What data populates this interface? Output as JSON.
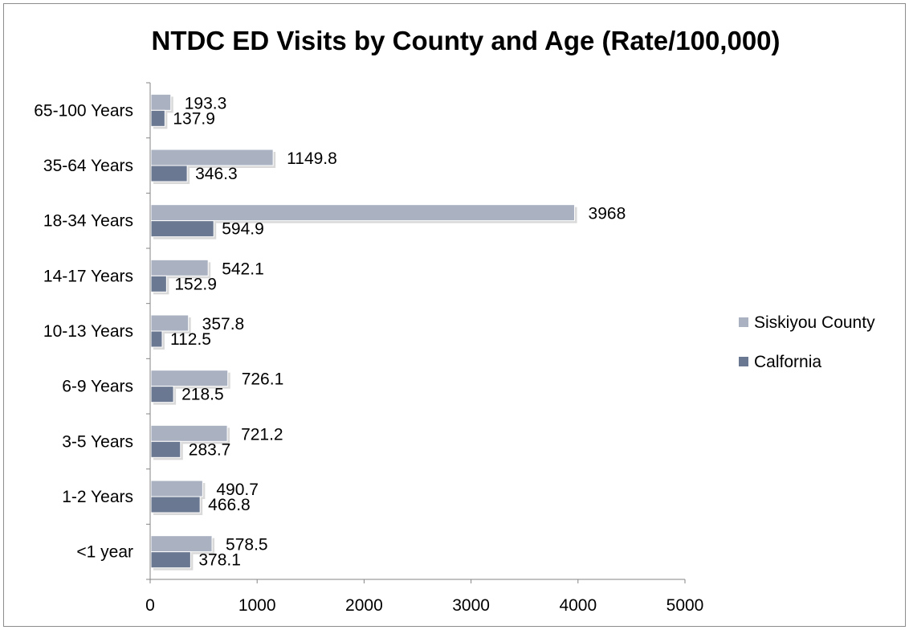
{
  "chart_data": {
    "type": "bar",
    "orientation": "horizontal",
    "title": "NTDC ED Visits by County and Age (Rate/100,000)",
    "categories": [
      "65-100 Years",
      "35-64 Years",
      "18-34 Years",
      "14-17 Years",
      "10-13 Years",
      "6-9 Years",
      "3-5 Years",
      "1-2 Years",
      "<1 year"
    ],
    "series": [
      {
        "name": "Siskiyou County",
        "color": "#aab2c1",
        "values": [
          193.3,
          1149.8,
          3968,
          542.1,
          357.8,
          726.1,
          721.2,
          490.7,
          578.5
        ],
        "labels": [
          "193.3",
          "1149.8",
          "3968",
          "542.1",
          "357.8",
          "726.1",
          "721.2",
          "490.7",
          "578.5"
        ]
      },
      {
        "name": "Calfornia",
        "color": "#6b7891",
        "values": [
          137.9,
          346.3,
          594.9,
          152.9,
          112.5,
          218.5,
          283.7,
          466.8,
          378.1
        ],
        "labels": [
          "137.9",
          "346.3",
          "594.9",
          "152.9",
          "112.5",
          "218.5",
          "283.7",
          "466.8",
          "378.1"
        ]
      }
    ],
    "xlim": [
      0,
      5000
    ],
    "xticks": [
      0,
      1000,
      2000,
      3000,
      4000,
      5000
    ],
    "xtick_labels": [
      "0",
      "1000",
      "2000",
      "3000",
      "4000",
      "5000"
    ],
    "grid": false,
    "legend_position": "right"
  }
}
